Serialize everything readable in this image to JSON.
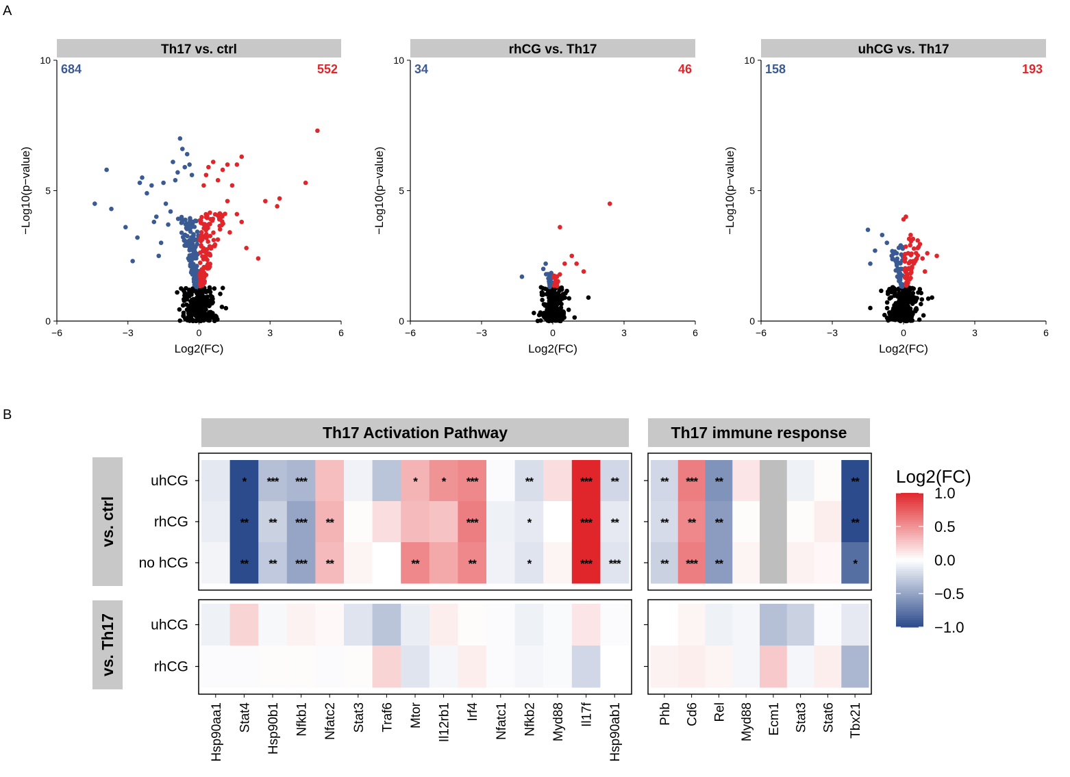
{
  "panel_labels": {
    "a": "A",
    "b": "B"
  },
  "colors": {
    "up": "#e0262b",
    "down": "#3a5a94",
    "ns": "#000000",
    "strip": "#c8c8c8",
    "na": "#bebebe",
    "heat_low": "#2c4b8c",
    "heat_mid": "#ffffff",
    "heat_high": "#e0262b"
  },
  "chart_data": [
    {
      "type": "scatter",
      "title": "Th17 vs. ctrl",
      "xlabel": "Log2(FC)",
      "ylabel": "−Log10(p−value)",
      "xlim": [
        -6,
        6
      ],
      "ylim": [
        0,
        10
      ],
      "xticks": [
        "−6",
        "−3",
        "0",
        "3",
        "6"
      ],
      "yticks": [
        "0",
        "5",
        "10"
      ],
      "down_count": "684",
      "up_count": "552",
      "ns_cloud": {
        "sd_x": 0.38,
        "max_y": 1.3,
        "n": 260
      },
      "down_cloud": {
        "min_y": 1.3,
        "max_y": 4.0,
        "n": 140
      },
      "up_cloud": {
        "min_y": 1.3,
        "max_y": 4.2,
        "n": 130
      },
      "down_points": [
        [
          -4.4,
          4.5
        ],
        [
          -3.9,
          5.8
        ],
        [
          -3.7,
          4.3
        ],
        [
          -3.1,
          3.6
        ],
        [
          -2.8,
          2.3
        ],
        [
          -2.6,
          3.2
        ],
        [
          -2.5,
          5.3
        ],
        [
          -2.4,
          5.5
        ],
        [
          -2.2,
          4.9
        ],
        [
          -2.0,
          5.2
        ],
        [
          -1.9,
          3.8
        ],
        [
          -1.8,
          4.0
        ],
        [
          -1.7,
          2.5
        ],
        [
          -1.6,
          3.0
        ],
        [
          -1.5,
          5.3
        ],
        [
          -1.4,
          4.5
        ],
        [
          -1.3,
          3.7
        ],
        [
          -1.2,
          4.2
        ],
        [
          -1.1,
          6.1
        ],
        [
          -1.0,
          5.4
        ],
        [
          -0.9,
          5.7
        ],
        [
          -0.8,
          7.0
        ],
        [
          -0.7,
          6.6
        ],
        [
          -0.6,
          5.9
        ],
        [
          -0.5,
          6.4
        ],
        [
          -0.4,
          6.0
        ],
        [
          -0.3,
          5.6
        ]
      ],
      "up_points": [
        [
          0.2,
          5.2
        ],
        [
          0.3,
          5.6
        ],
        [
          0.4,
          5.9
        ],
        [
          0.6,
          6.1
        ],
        [
          0.8,
          5.4
        ],
        [
          1.0,
          5.8
        ],
        [
          1.2,
          6.0
        ],
        [
          1.4,
          5.2
        ],
        [
          1.6,
          6.0
        ],
        [
          1.8,
          6.3
        ],
        [
          1.2,
          4.6
        ],
        [
          1.6,
          4.1
        ],
        [
          1.8,
          3.8
        ],
        [
          1.3,
          3.4
        ],
        [
          2.0,
          2.8
        ],
        [
          2.5,
          2.4
        ],
        [
          2.8,
          4.6
        ],
        [
          3.3,
          4.4
        ],
        [
          3.4,
          4.7
        ],
        [
          4.5,
          5.3
        ],
        [
          5.0,
          7.3
        ]
      ]
    },
    {
      "type": "scatter",
      "title": "rhCG vs. Th17",
      "xlabel": "Log2(FC)",
      "ylabel": "−Log10(p−value)",
      "xlim": [
        -6,
        6
      ],
      "ylim": [
        0,
        10
      ],
      "xticks": [
        "−6",
        "−3",
        "0",
        "3",
        "6"
      ],
      "yticks": [
        "0",
        "5",
        "10"
      ],
      "down_count": "34",
      "up_count": "46",
      "ns_cloud": {
        "sd_x": 0.28,
        "max_y": 1.3,
        "n": 220
      },
      "down_cloud": {
        "min_y": 1.3,
        "max_y": 1.9,
        "n": 16
      },
      "up_cloud": {
        "min_y": 1.3,
        "max_y": 1.8,
        "n": 16
      },
      "down_points": [
        [
          -1.3,
          1.7
        ],
        [
          -0.4,
          2.0
        ],
        [
          -0.3,
          2.2
        ],
        [
          -0.2,
          1.8
        ]
      ],
      "up_points": [
        [
          0.3,
          3.6
        ],
        [
          0.5,
          2.2
        ],
        [
          0.8,
          2.5
        ],
        [
          1.0,
          2.2
        ],
        [
          1.3,
          1.9
        ],
        [
          2.4,
          4.5
        ]
      ],
      "ns_points": [
        [
          1.5,
          0.9
        ]
      ]
    },
    {
      "type": "scatter",
      "title": "uhCG vs. Th17",
      "xlabel": "Log2(FC)",
      "ylabel": "−Log10(p−value)",
      "xlim": [
        -6,
        6
      ],
      "ylim": [
        0,
        10
      ],
      "xticks": [
        "−6",
        "−3",
        "0",
        "3",
        "6"
      ],
      "yticks": [
        "0",
        "5",
        "10"
      ],
      "down_count": "158",
      "up_count": "193",
      "ns_cloud": {
        "sd_x": 0.33,
        "max_y": 1.3,
        "n": 240
      },
      "down_cloud": {
        "min_y": 1.3,
        "max_y": 2.9,
        "n": 48
      },
      "up_cloud": {
        "min_y": 1.3,
        "max_y": 3.2,
        "n": 55
      },
      "down_points": [
        [
          -1.5,
          3.5
        ],
        [
          -1.2,
          2.7
        ],
        [
          -0.9,
          3.3
        ],
        [
          -0.7,
          3.0
        ],
        [
          -1.4,
          2.2
        ],
        [
          -0.5,
          2.5
        ]
      ],
      "up_points": [
        [
          0.0,
          3.9
        ],
        [
          0.1,
          4.0
        ],
        [
          0.3,
          3.3
        ],
        [
          0.6,
          2.8
        ],
        [
          0.8,
          2.4
        ],
        [
          1.0,
          2.6
        ],
        [
          1.4,
          2.5
        ],
        [
          0.9,
          1.9
        ]
      ],
      "ns_points": [
        [
          -1.4,
          0.5
        ],
        [
          1.2,
          0.9
        ]
      ]
    },
    {
      "type": "heatmap",
      "colorbar_title": "Log2(FC)",
      "colorbar_ticks": [
        "1.0",
        "0.5",
        "0.0",
        "−0.5",
        "−1.0"
      ],
      "colorbar_tick_values": [
        1.0,
        0.5,
        0.0,
        -0.5,
        -1.0
      ],
      "limits": [
        -1.0,
        1.0
      ],
      "row_group_labels": [
        "vs. ctrl",
        "vs. Th17"
      ],
      "group1_rows": [
        "uhCG",
        "rhCG",
        "no hCG"
      ],
      "group2_rows": [
        "uhCG",
        "rhCG"
      ],
      "left_panel": {
        "title": "Th17 Activation Pathway",
        "columns": [
          "Hsp90aa1",
          "Stat4",
          "Hsp90b1",
          "Nfkb1",
          "Nfatc2",
          "Stat3",
          "Traf6",
          "Mtor",
          "Il12rb1",
          "Irf4",
          "Nfatc1",
          "Nfkb2",
          "Myd88",
          "Il17f",
          "Hsp90ab1"
        ],
        "group1_values": [
          [
            -0.13,
            -1.0,
            -0.35,
            -0.4,
            0.3,
            -0.07,
            -0.32,
            0.35,
            0.5,
            0.55,
            -0.02,
            -0.18,
            0.15,
            1.0,
            -0.22
          ],
          [
            -0.1,
            -1.0,
            -0.25,
            -0.5,
            0.35,
            0.02,
            0.15,
            0.32,
            0.28,
            0.6,
            -0.08,
            -0.12,
            0.0,
            1.0,
            -0.12
          ],
          [
            -0.06,
            -1.0,
            -0.3,
            -0.5,
            0.32,
            0.05,
            0.0,
            0.55,
            0.4,
            0.55,
            -0.07,
            -0.15,
            0.05,
            1.0,
            -0.15
          ]
        ],
        "group1_stars": [
          [
            "",
            "*",
            "***",
            "***",
            "",
            "",
            "",
            "*",
            "*",
            "***",
            "",
            "**",
            "",
            "***",
            "**"
          ],
          [
            "",
            "**",
            "**",
            "***",
            "**",
            "",
            "",
            "",
            "",
            "***",
            "",
            "*",
            "",
            "***",
            "**"
          ],
          [
            "",
            "**",
            "**",
            "***",
            "**",
            "",
            "",
            "**",
            "",
            "**",
            "",
            "*",
            "",
            "***",
            "***"
          ]
        ],
        "group2_values": [
          [
            -0.08,
            0.2,
            -0.04,
            0.06,
            0.03,
            -0.15,
            -0.32,
            -0.1,
            0.08,
            0.02,
            -0.02,
            -0.08,
            -0.03,
            0.12,
            -0.02
          ],
          [
            -0.02,
            -0.02,
            0.02,
            0.02,
            -0.02,
            0.02,
            0.2,
            -0.15,
            -0.05,
            0.08,
            -0.02,
            -0.05,
            -0.03,
            -0.22,
            0.0
          ]
        ]
      },
      "right_panel": {
        "title": "Th17 immune response",
        "columns": [
          "Phb",
          "Cd6",
          "Rel",
          "Myd88",
          "Ecm1",
          "Stat3",
          "Stat6",
          "Tbx21"
        ],
        "group1_values": [
          [
            -0.22,
            0.6,
            -0.6,
            0.12,
            null,
            -0.08,
            0.02,
            -1.0
          ],
          [
            -0.2,
            0.55,
            -0.55,
            0.02,
            null,
            0.02,
            0.08,
            -1.0
          ],
          [
            -0.25,
            0.6,
            -0.55,
            0.05,
            null,
            0.06,
            0.04,
            -0.8
          ]
        ],
        "group1_stars": [
          [
            "**",
            "***",
            "**",
            "",
            "",
            "",
            "",
            "**"
          ],
          [
            "**",
            "**",
            "**",
            "",
            "",
            "",
            "",
            "**"
          ],
          [
            "**",
            "***",
            "**",
            "",
            "",
            "",
            "",
            "*"
          ]
        ],
        "group2_values": [
          [
            0.0,
            0.05,
            -0.08,
            -0.05,
            -0.35,
            -0.25,
            -0.02,
            -0.12
          ],
          [
            0.06,
            0.08,
            0.05,
            -0.05,
            0.25,
            -0.05,
            0.08,
            -0.4
          ]
        ]
      }
    }
  ]
}
